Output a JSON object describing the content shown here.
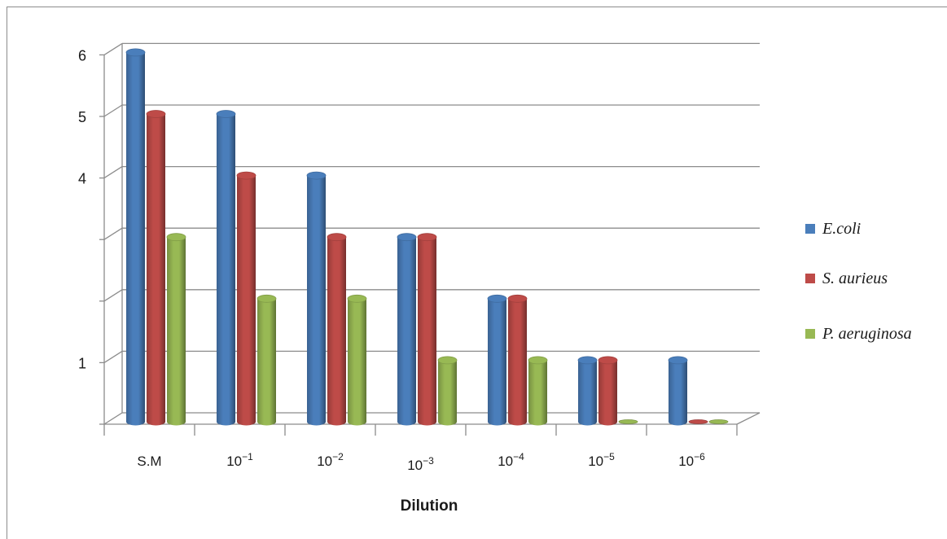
{
  "chart_data": {
    "type": "bar",
    "style": "3d-cylinder",
    "title": "",
    "xlabel": "Dilution",
    "ylabel": "",
    "ylim": [
      0,
      6
    ],
    "yticks": [
      {
        "value": 1,
        "label": "1"
      },
      {
        "value": 4,
        "label": "4"
      },
      {
        "value": 5,
        "label": "5"
      },
      {
        "value": 6,
        "label": "6"
      }
    ],
    "categories": [
      {
        "base": "S.M",
        "exp": ""
      },
      {
        "base": "10",
        "exp": "−1"
      },
      {
        "base": "10",
        "exp": "−2"
      },
      {
        "base": "10",
        "exp": "−3"
      },
      {
        "base": "10",
        "exp": "−4"
      },
      {
        "base": "10",
        "exp": "−5"
      },
      {
        "base": "10",
        "exp": "−6"
      }
    ],
    "series": [
      {
        "name": "E.coli",
        "color": "#4a7ebb",
        "values": [
          6,
          5,
          4,
          3,
          2,
          1,
          1
        ]
      },
      {
        "name": "S. aurieus",
        "color": "#be4b48",
        "values": [
          5,
          4,
          3,
          3,
          2,
          1,
          0
        ]
      },
      {
        "name": "P. aeruginosa",
        "color": "#98b954",
        "values": [
          3,
          2,
          2,
          1,
          1,
          0,
          0
        ]
      }
    ],
    "grid": true,
    "legend": "right"
  }
}
